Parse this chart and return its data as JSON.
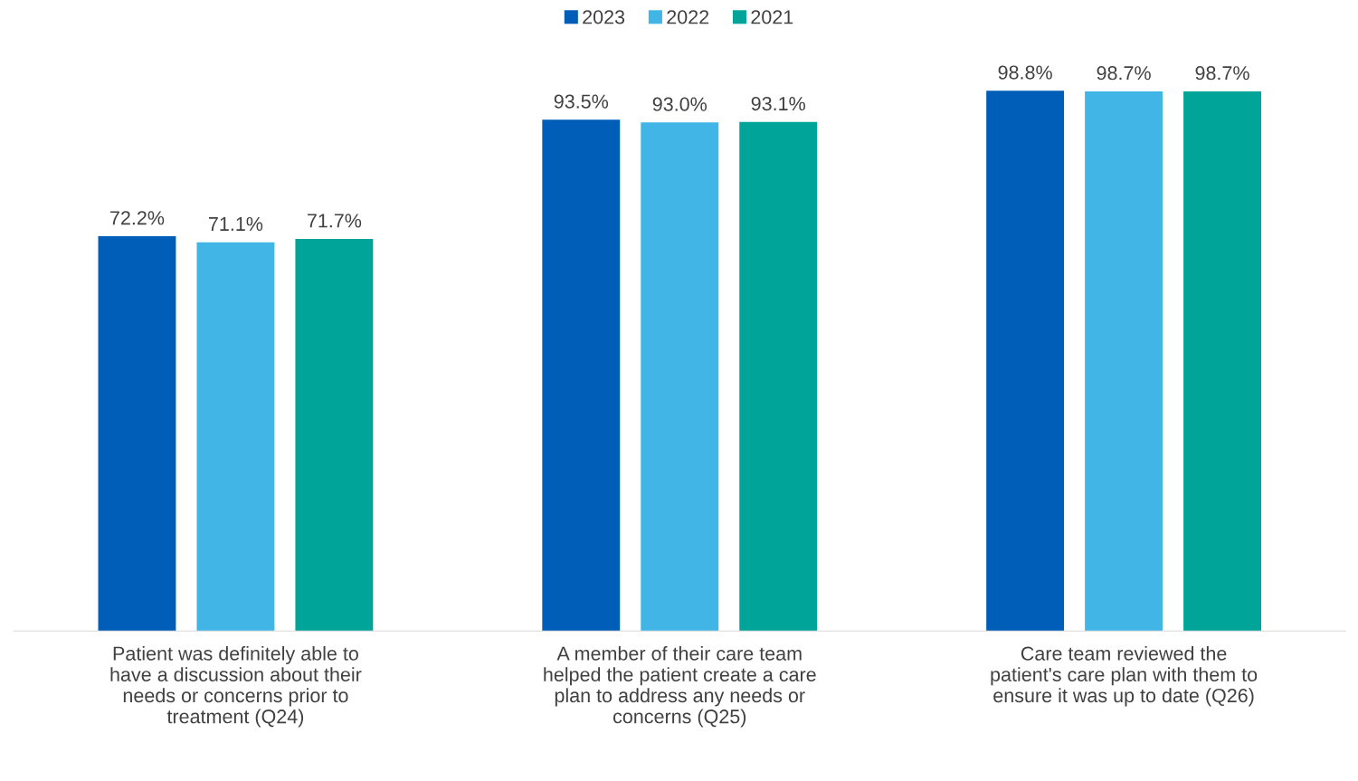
{
  "chart_data": {
    "type": "bar",
    "categories": [
      "Patient was definitely able to\nhave a discussion about their\nneeds or concerns prior to\ntreatment (Q24)",
      "A member of their care team\nhelped the patient create a care\nplan to address any needs or\nconcerns (Q25)",
      "Care team reviewed the\npatient's care plan with them to\nensure it was up to date (Q26)"
    ],
    "series": [
      {
        "name": "2023",
        "color": "#005eb8",
        "values": [
          72.2,
          93.5,
          98.8
        ],
        "value_labels": [
          "72.2%",
          "93.5%",
          "98.8%"
        ]
      },
      {
        "name": "2022",
        "color": "#41b6e6",
        "values": [
          71.1,
          93.0,
          98.7
        ],
        "value_labels": [
          "71.1%",
          "93.0%",
          "98.7%"
        ]
      },
      {
        "name": "2021",
        "color": "#00a499",
        "values": [
          71.7,
          93.1,
          98.7
        ],
        "value_labels": [
          "71.7%",
          "93.1%",
          "98.7%"
        ]
      }
    ],
    "data_labels": true,
    "legend": "top"
  }
}
